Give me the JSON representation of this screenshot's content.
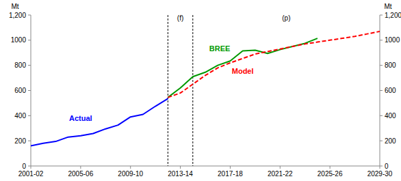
{
  "chart_data": {
    "type": "line",
    "y_label": "Mt",
    "categories": [
      "2001-02",
      null,
      null,
      null,
      "2005-06",
      null,
      null,
      null,
      "2009-10",
      null,
      null,
      null,
      "2013-14",
      null,
      null,
      null,
      "2017-18",
      null,
      null,
      null,
      "2021-22",
      null,
      null,
      null,
      "2025-26",
      null,
      null,
      null,
      "2029-30"
    ],
    "series": [
      {
        "name": "Actual",
        "color": "#0000ff",
        "line_style": "solid",
        "values": [
          160,
          180,
          195,
          230,
          240,
          258,
          295,
          325,
          390,
          410,
          475,
          535,
          null,
          null,
          null,
          null,
          null,
          null,
          null,
          null,
          null,
          null,
          null,
          null,
          null,
          null,
          null,
          null,
          null
        ]
      },
      {
        "name": "BREE",
        "color": "#009900",
        "line_style": "solid",
        "values": [
          null,
          null,
          null,
          null,
          null,
          null,
          null,
          null,
          null,
          null,
          null,
          545,
          620,
          710,
          745,
          800,
          835,
          915,
          920,
          895,
          925,
          950,
          975,
          1015,
          null,
          null,
          null,
          null,
          null
        ]
      },
      {
        "name": "Model",
        "color": "#ff0000",
        "line_style": "dashed",
        "values": [
          null,
          null,
          null,
          null,
          null,
          null,
          null,
          null,
          null,
          null,
          null,
          545,
          580,
          650,
          720,
          780,
          820,
          855,
          890,
          910,
          930,
          950,
          970,
          985,
          1000,
          1015,
          1030,
          1050,
          1070
        ]
      }
    ],
    "annotations": [
      {
        "text": "(f)",
        "from": 11,
        "to": 13
      },
      {
        "text": "(p)",
        "from": 13,
        "to": 28
      }
    ],
    "ylim": [
      0,
      1200
    ],
    "yticks": [
      0,
      200,
      400,
      600,
      800,
      1000,
      {
        "value": 1200,
        "label": "1,200"
      }
    ],
    "grid": false
  }
}
